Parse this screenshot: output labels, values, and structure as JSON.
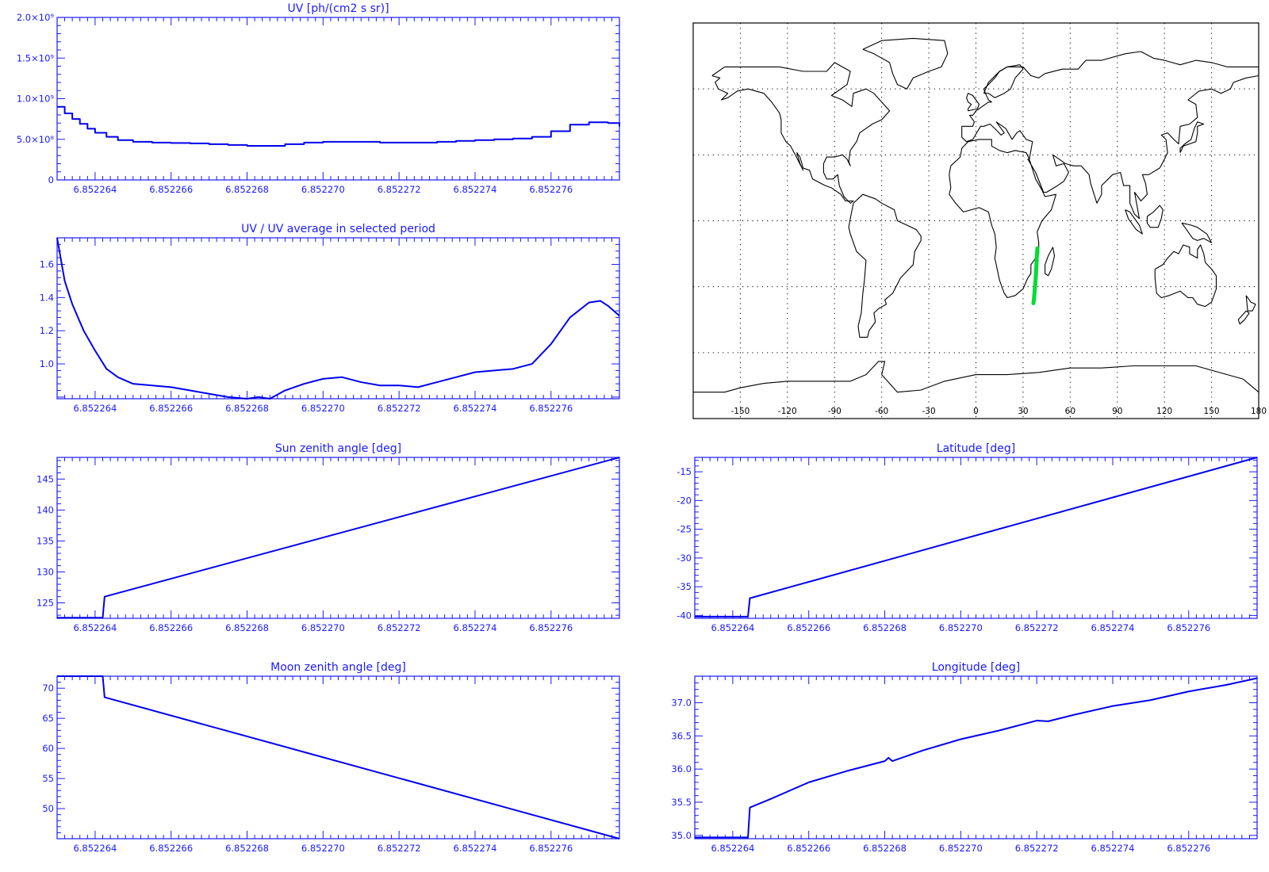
{
  "colors": {
    "line": "#0000ee",
    "axis": "#1a1aff",
    "track": "#00dd33",
    "coast": "#000000"
  },
  "chart_data": [
    {
      "id": "uv",
      "type": "line",
      "title": "UV [ph/(cm2 s sr)]",
      "x_tick_labels": [
        "6.852264",
        "6.852266",
        "6.852268",
        "6.852270",
        "6.852272",
        "6.852274",
        "6.852276"
      ],
      "y_tick_labels": [
        "0",
        "5.0×10⁸",
        "1.0×10⁹",
        "1.5×10⁹",
        "2.0×10⁹"
      ],
      "xlim": [
        6.852263,
        6.8522778
      ],
      "ylim": [
        0,
        2000000000.0
      ],
      "y_ticks": [
        0,
        500000000.0,
        1000000000.0,
        1500000000.0,
        2000000000.0
      ],
      "series": [
        {
          "x": [
            6.852263,
            6.8522632,
            6.8522634,
            6.8522636,
            6.8522638,
            6.852264,
            6.8522643,
            6.8522646,
            6.852265,
            6.8522655,
            6.852266,
            6.8522665,
            6.852267,
            6.8522675,
            6.852268,
            6.8522685,
            6.852269,
            6.8522695,
            6.85227,
            6.8522705,
            6.852271,
            6.8522715,
            6.852272,
            6.8522725,
            6.852273,
            6.8522735,
            6.852274,
            6.8522745,
            6.852275,
            6.8522755,
            6.852276,
            6.8522765,
            6.852277,
            6.8522775,
            6.8522778
          ],
          "y": [
            900000000.0,
            820000000.0,
            750000000.0,
            690000000.0,
            630000000.0,
            580000000.0,
            530000000.0,
            490000000.0,
            470000000.0,
            460000000.0,
            455000000.0,
            450000000.0,
            440000000.0,
            430000000.0,
            420000000.0,
            420000000.0,
            440000000.0,
            460000000.0,
            470000000.0,
            470000000.0,
            470000000.0,
            460000000.0,
            460000000.0,
            460000000.0,
            470000000.0,
            480000000.0,
            490000000.0,
            500000000.0,
            510000000.0,
            530000000.0,
            600000000.0,
            680000000.0,
            710000000.0,
            700000000.0,
            660000000.0
          ]
        }
      ]
    },
    {
      "id": "ratio",
      "type": "line",
      "title": "UV / UV average in selected period",
      "x_tick_labels": [
        "6.852264",
        "6.852266",
        "6.852268",
        "6.852270",
        "6.852272",
        "6.852274",
        "6.852276"
      ],
      "y_tick_labels": [
        "1.0",
        "1.2",
        "1.4",
        "1.6"
      ],
      "xlim": [
        6.852263,
        6.8522778
      ],
      "ylim": [
        0.79,
        1.76
      ],
      "y_ticks": [
        1.0,
        1.2,
        1.4,
        1.6
      ],
      "series": [
        {
          "x": [
            6.852263,
            6.8522632,
            6.8522634,
            6.8522637,
            6.852264,
            6.8522643,
            6.8522646,
            6.852265,
            6.8522655,
            6.852266,
            6.8522665,
            6.852267,
            6.8522675,
            6.852268,
            6.8522683,
            6.8522686,
            6.852269,
            6.8522695,
            6.85227,
            6.8522705,
            6.852271,
            6.8522715,
            6.852272,
            6.8522725,
            6.852273,
            6.8522735,
            6.852274,
            6.8522745,
            6.852275,
            6.8522755,
            6.852276,
            6.8522765,
            6.852277,
            6.8522773,
            6.8522775,
            6.8522778
          ],
          "y": [
            1.76,
            1.5,
            1.36,
            1.2,
            1.08,
            0.97,
            0.92,
            0.88,
            0.87,
            0.86,
            0.84,
            0.82,
            0.8,
            0.79,
            0.8,
            0.79,
            0.84,
            0.88,
            0.91,
            0.92,
            0.89,
            0.87,
            0.87,
            0.86,
            0.89,
            0.92,
            0.95,
            0.96,
            0.97,
            1.0,
            1.12,
            1.28,
            1.37,
            1.38,
            1.35,
            1.29
          ]
        }
      ]
    },
    {
      "id": "sza",
      "type": "line",
      "title": "Sun zenith angle [deg]",
      "x_tick_labels": [
        "6.852264",
        "6.852266",
        "6.852268",
        "6.852270",
        "6.852272",
        "6.852274",
        "6.852276"
      ],
      "y_tick_labels": [
        "125",
        "130",
        "135",
        "140",
        "145"
      ],
      "xlim": [
        6.852263,
        6.8522778
      ],
      "ylim": [
        122.5,
        148.5
      ],
      "y_ticks": [
        125,
        130,
        135,
        140,
        145
      ],
      "series": [
        {
          "x": [
            6.852263,
            6.8522642,
            6.85226425,
            6.8522778
          ],
          "y": [
            122.6,
            122.6,
            126,
            148.5
          ]
        }
      ]
    },
    {
      "id": "lat",
      "type": "line",
      "title": "Latitude [deg]",
      "x_tick_labels": [
        "6.852264",
        "6.852266",
        "6.852268",
        "6.852270",
        "6.852272",
        "6.852274",
        "6.852276"
      ],
      "y_tick_labels": [
        "-40",
        "-35",
        "-30",
        "-25",
        "-20",
        "-15"
      ],
      "xlim": [
        6.852263,
        6.8522778
      ],
      "ylim": [
        -40.5,
        -12.5
      ],
      "y_ticks": [
        -40,
        -35,
        -30,
        -25,
        -20,
        -15
      ],
      "series": [
        {
          "x": [
            6.852263,
            6.8522644,
            6.85226445,
            6.8522778
          ],
          "y": [
            -40.2,
            -40.2,
            -37,
            -12.5
          ]
        }
      ]
    },
    {
      "id": "mza",
      "type": "line",
      "title": "Moon zenith angle [deg]",
      "x_tick_labels": [
        "6.852264",
        "6.852266",
        "6.852268",
        "6.852270",
        "6.852272",
        "6.852274",
        "6.852276"
      ],
      "y_tick_labels": [
        "50",
        "55",
        "60",
        "65",
        "70"
      ],
      "xlim": [
        6.852263,
        6.8522778
      ],
      "ylim": [
        45,
        72
      ],
      "y_ticks": [
        50,
        55,
        60,
        65,
        70
      ],
      "series": [
        {
          "x": [
            6.852263,
            6.8522642,
            6.85226425,
            6.8522778
          ],
          "y": [
            72,
            72,
            68.5,
            45
          ]
        }
      ]
    },
    {
      "id": "lon",
      "type": "line",
      "title": "Longitude [deg]",
      "x_tick_labels": [
        "6.852264",
        "6.852266",
        "6.852268",
        "6.852270",
        "6.852272",
        "6.852274",
        "6.852276"
      ],
      "y_tick_labels": [
        "35.0",
        "35.5",
        "36.0",
        "36.5",
        "37.0"
      ],
      "xlim": [
        6.852263,
        6.8522778
      ],
      "ylim": [
        34.95,
        37.4
      ],
      "y_ticks": [
        35.0,
        35.5,
        36.0,
        36.5,
        37.0
      ],
      "series": [
        {
          "x": [
            6.852263,
            6.8522644,
            6.85226445,
            6.852265,
            6.852266,
            6.852267,
            6.852268,
            6.8522681,
            6.8522682,
            6.852269,
            6.85227,
            6.852271,
            6.852272,
            6.8522723,
            6.852273,
            6.852274,
            6.852275,
            6.852276,
            6.852277,
            6.8522778
          ],
          "y": [
            34.97,
            34.97,
            35.42,
            35.55,
            35.8,
            35.97,
            36.12,
            36.17,
            36.12,
            36.28,
            36.45,
            36.58,
            36.73,
            36.72,
            36.82,
            36.95,
            37.04,
            37.17,
            37.27,
            37.37
          ]
        }
      ]
    }
  ],
  "map": {
    "type": "map",
    "lon_tick_labels": [
      "-150",
      "-120",
      "-90",
      "-60",
      "-30",
      "0",
      "30",
      "60",
      "90",
      "120",
      "150",
      "180"
    ],
    "lon_range": [
      -180,
      180
    ],
    "lat_range": [
      -90,
      90
    ],
    "grid": true,
    "track": {
      "lon": [
        39.1,
        38.9,
        38.7,
        38.5,
        38.3,
        38.1,
        37.9,
        37.6,
        37.3,
        37.0,
        36.8,
        36.6
      ],
      "lat": [
        -12.5,
        -15,
        -17.5,
        -20,
        -22.5,
        -25,
        -27.5,
        -30,
        -32.5,
        -35,
        -36.5,
        -37.5
      ]
    }
  }
}
